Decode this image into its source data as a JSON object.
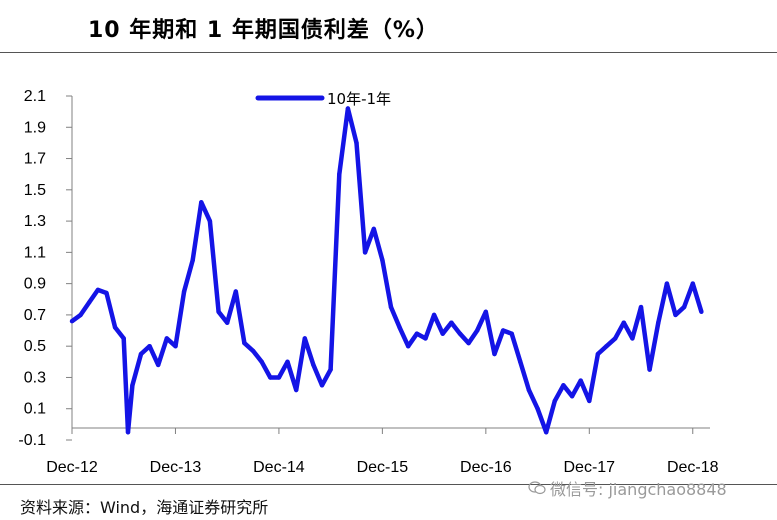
{
  "title": "10 年期和 1 年期国债利差（%）",
  "source": "资料来源：Wind，海通证券研究所",
  "watermark": "微信号: jiangchao8848",
  "chart_data": {
    "type": "line",
    "title": "10 年期和 1 年期国债利差（%）",
    "xlabel": "",
    "ylabel": "",
    "ylim": [
      -0.1,
      2.1
    ],
    "yticks": [
      -0.1,
      0.1,
      0.3,
      0.5,
      0.7,
      0.9,
      1.1,
      1.3,
      1.5,
      1.7,
      1.9,
      2.1
    ],
    "ytick_labels": [
      "-0.1",
      "0.1",
      "0.3",
      "0.5",
      "0.7",
      "0.9",
      "1.1",
      "1.3",
      "1.5",
      "1.7",
      "1.9",
      "2.1"
    ],
    "xtick_labels": [
      "Dec-12",
      "Dec-13",
      "Dec-14",
      "Dec-15",
      "Dec-16",
      "Dec-17",
      "Dec-18"
    ],
    "xticks": [
      "2012-12",
      "2013-12",
      "2014-12",
      "2015-12",
      "2016-12",
      "2017-12",
      "2018-12"
    ],
    "xlim": [
      "2012-12",
      "2019-02"
    ],
    "legend": "top-center",
    "grid": false,
    "color": "#1414e6",
    "series": [
      {
        "name": "10年-1年",
        "x": [
          "2012-12",
          "2013-01",
          "2013-02",
          "2013-03",
          "2013-04",
          "2013-05",
          "2013-06",
          "2013-06",
          "2013-07",
          "2013-08",
          "2013-09",
          "2013-10",
          "2013-11",
          "2013-12",
          "2014-01",
          "2014-02",
          "2014-03",
          "2014-04",
          "2014-05",
          "2014-06",
          "2014-07",
          "2014-08",
          "2014-09",
          "2014-10",
          "2014-11",
          "2014-12",
          "2015-01",
          "2015-02",
          "2015-03",
          "2015-04",
          "2015-05",
          "2015-06",
          "2015-07",
          "2015-08",
          "2015-09",
          "2015-10",
          "2015-11",
          "2015-12",
          "2016-01",
          "2016-02",
          "2016-03",
          "2016-04",
          "2016-05",
          "2016-06",
          "2016-07",
          "2016-08",
          "2016-09",
          "2016-10",
          "2016-11",
          "2016-12",
          "2017-01",
          "2017-02",
          "2017-03",
          "2017-04",
          "2017-05",
          "2017-06",
          "2017-07",
          "2017-08",
          "2017-09",
          "2017-10",
          "2017-11",
          "2017-12",
          "2018-01",
          "2018-02",
          "2018-03",
          "2018-04",
          "2018-05",
          "2018-06",
          "2018-07",
          "2018-08",
          "2018-09",
          "2018-10",
          "2018-11",
          "2018-12",
          "2019-01"
        ],
        "values": [
          0.66,
          0.7,
          0.78,
          0.86,
          0.84,
          0.62,
          0.55,
          -0.05,
          0.25,
          0.45,
          0.5,
          0.38,
          0.55,
          0.5,
          0.85,
          1.05,
          1.42,
          1.3,
          0.72,
          0.65,
          0.85,
          0.52,
          0.47,
          0.4,
          0.3,
          0.3,
          0.4,
          0.22,
          0.55,
          0.38,
          0.25,
          0.35,
          1.6,
          2.02,
          1.8,
          1.1,
          1.25,
          1.05,
          0.75,
          0.62,
          0.5,
          0.58,
          0.55,
          0.7,
          0.58,
          0.65,
          0.58,
          0.52,
          0.6,
          0.72,
          0.45,
          0.6,
          0.58,
          0.4,
          0.22,
          0.1,
          -0.05,
          0.15,
          0.25,
          0.18,
          0.28,
          0.15,
          0.45,
          0.5,
          0.55,
          0.65,
          0.55,
          0.75,
          0.35,
          0.65,
          0.9,
          0.7,
          0.75,
          0.9,
          0.72
        ]
      }
    ]
  }
}
